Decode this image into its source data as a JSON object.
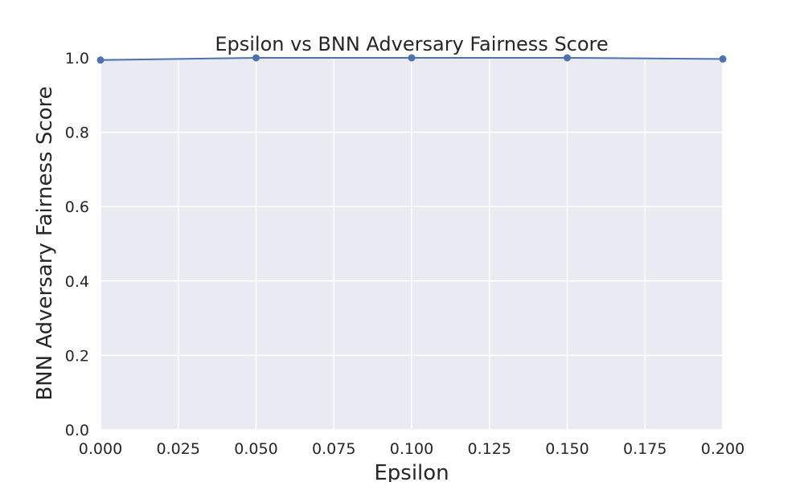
{
  "chart_data": {
    "type": "line",
    "title": "Epsilon vs BNN Adversary Fairness Score",
    "xlabel": "Epsilon",
    "ylabel": "BNN Adversary Fairness Score",
    "xlim": [
      0.0,
      0.2
    ],
    "ylim": [
      0.0,
      1.0
    ],
    "xticks": [
      "0.000",
      "0.025",
      "0.050",
      "0.075",
      "0.100",
      "0.125",
      "0.150",
      "0.175",
      "0.200"
    ],
    "yticks": [
      "0.0",
      "0.2",
      "0.4",
      "0.6",
      "0.8",
      "1.0"
    ],
    "grid": true,
    "series": [
      {
        "x": [
          0.0,
          0.05,
          0.1,
          0.15,
          0.2
        ],
        "y": [
          0.994,
          1.0,
          1.0,
          1.0,
          0.997
        ]
      }
    ],
    "colors": {
      "line": "#4c72b0",
      "plot_background": "#eaeaf2",
      "grid": "#ffffff"
    }
  }
}
